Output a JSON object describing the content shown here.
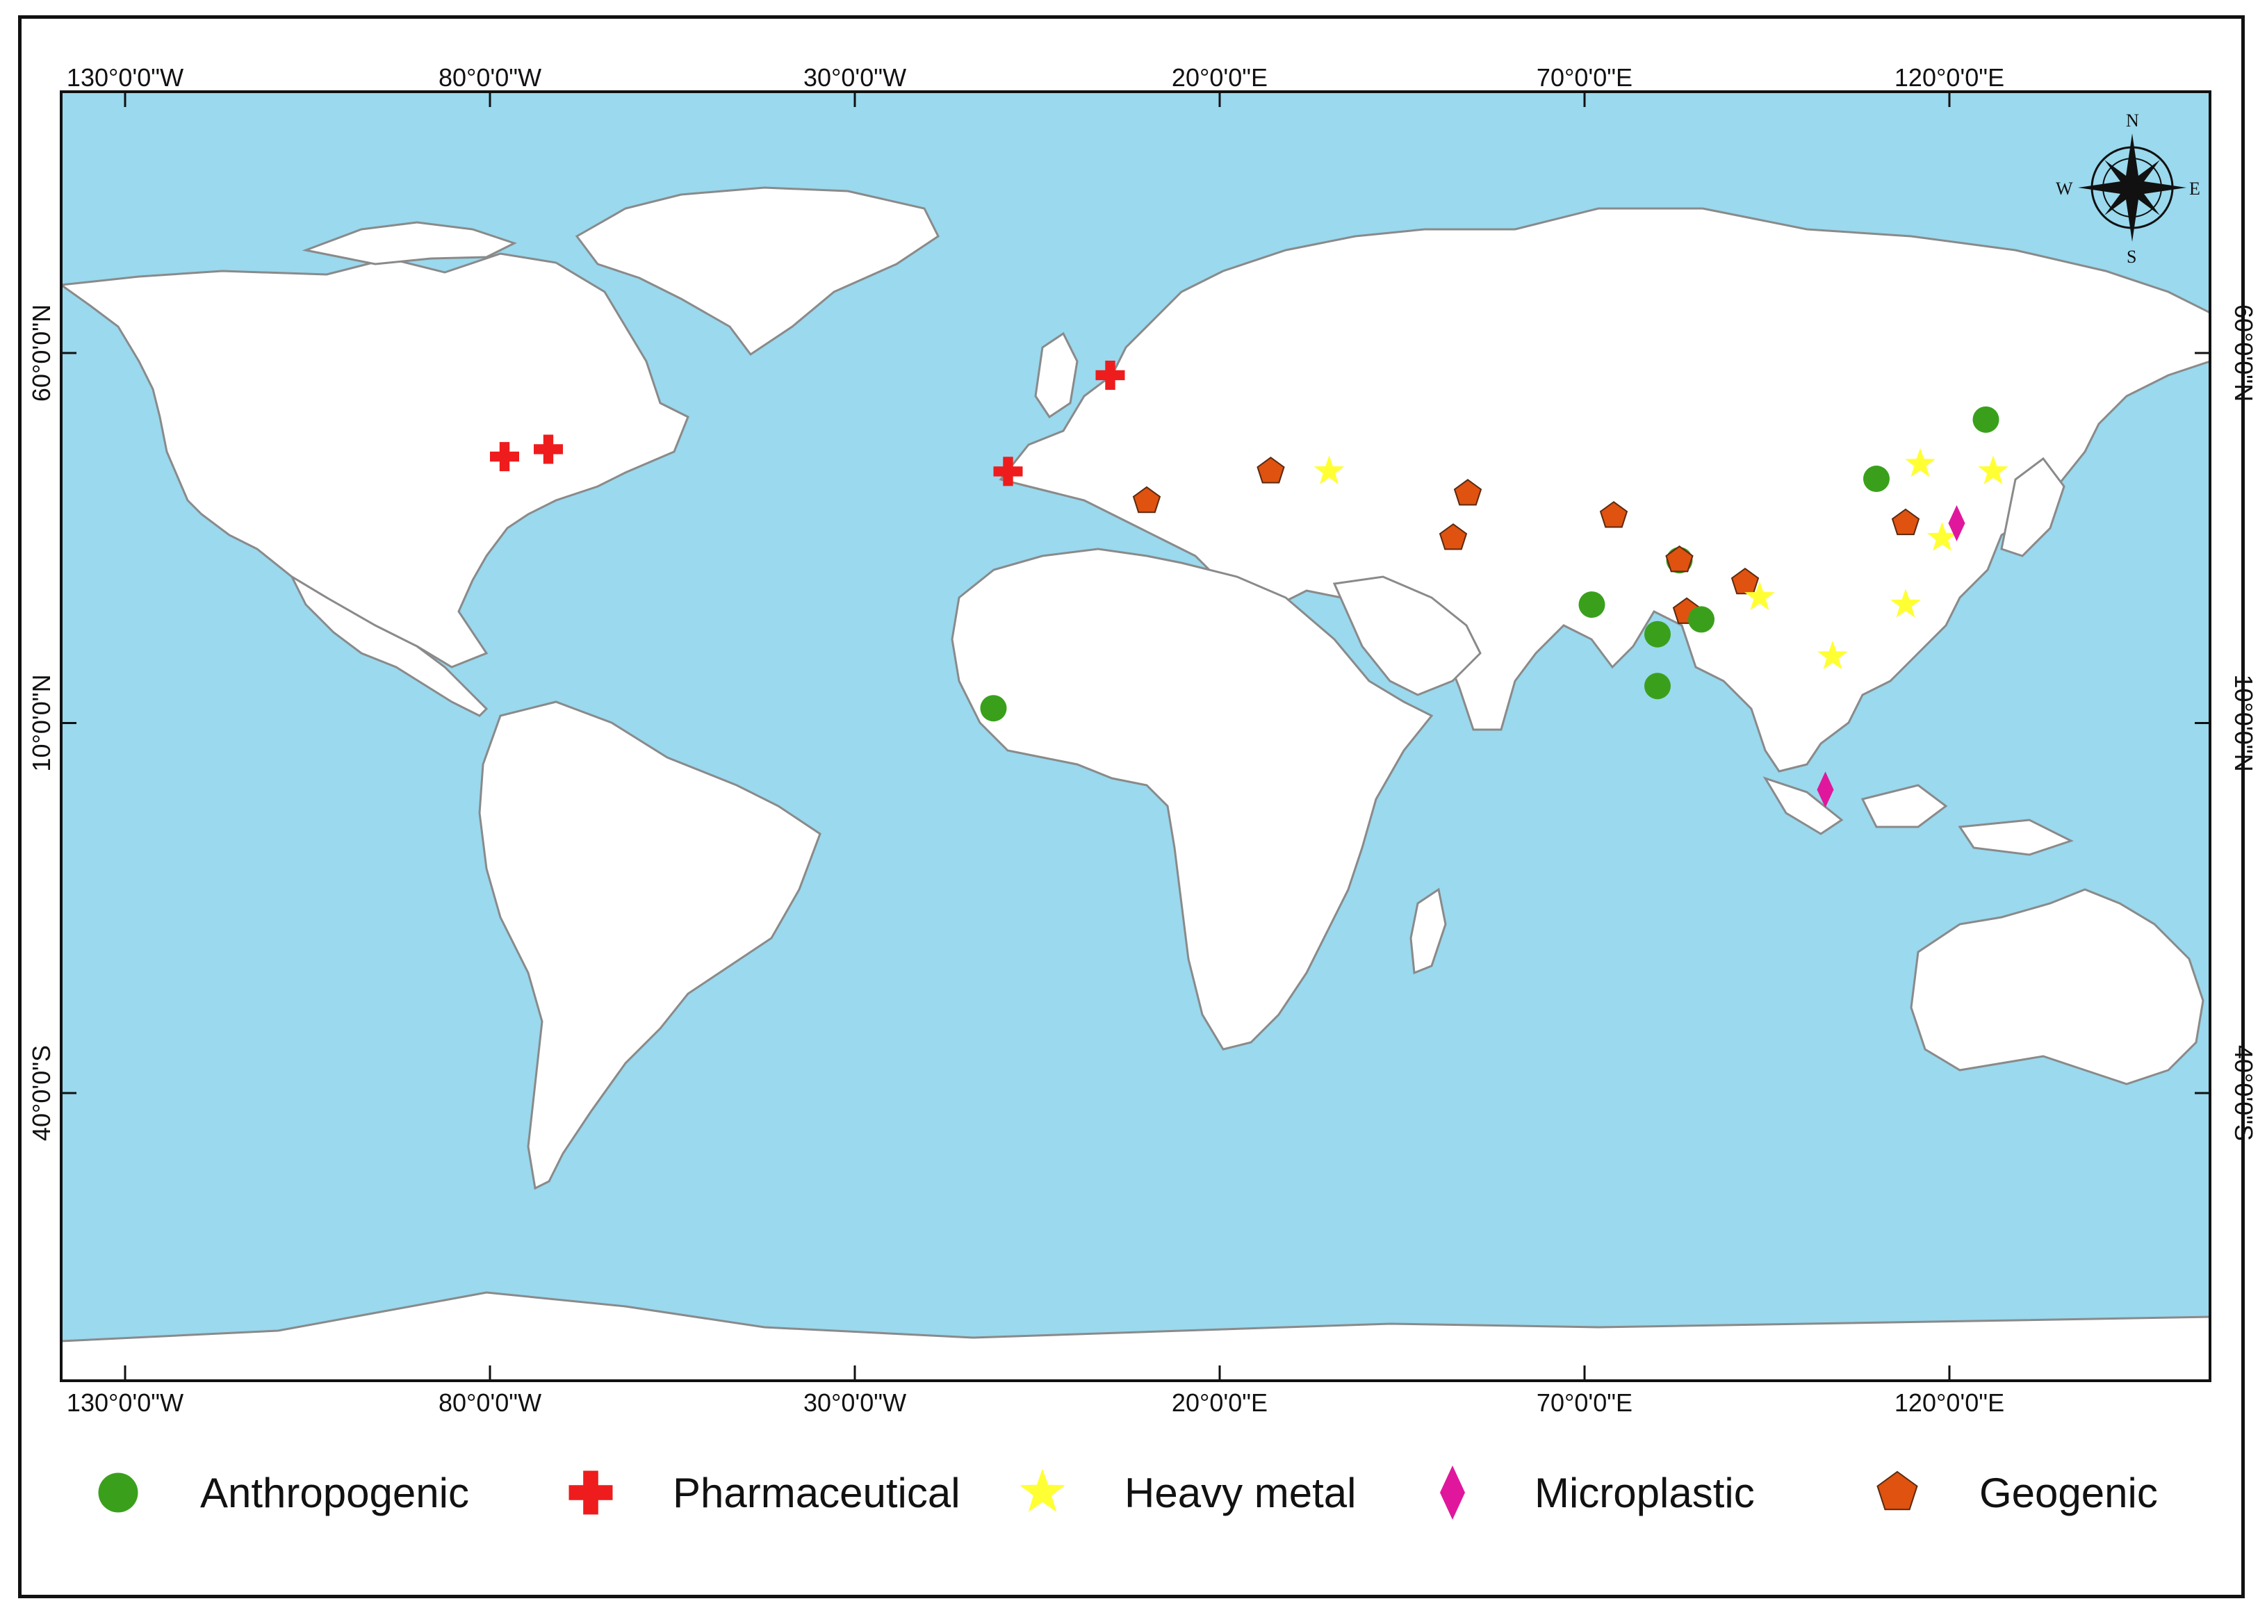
{
  "map": {
    "ocean_color": "#9ad9ee",
    "land_color": "#ffffff",
    "border_color": "#8a8a8a"
  },
  "axes": {
    "top_ticks": [
      "130°0'0\"W",
      "80°0'0\"W",
      "30°0'0\"W",
      "20°0'0\"E",
      "70°0'0\"E",
      "120°0'0\"E"
    ],
    "bottom_ticks": [
      "130°0'0\"W",
      "80°0'0\"W",
      "30°0'0\"W",
      "20°0'0\"E",
      "70°0'0\"E",
      "120°0'0\"E"
    ],
    "left_ticks": [
      "60°0'0\"N",
      "10°0'0\"N",
      "40°0'0\"S"
    ],
    "right_ticks": [
      "60°0'0\"N",
      "10°0'0\"N",
      "40°0'0\"S"
    ]
  },
  "compass": {
    "icon": "compass-rose-icon",
    "n": "N",
    "s": "S",
    "e": "E",
    "w": "W"
  },
  "legend": [
    {
      "key": "anthropogenic",
      "label": "Anthropogenic",
      "symbol": "circle",
      "color": "#3aa01c"
    },
    {
      "key": "pharmaceutical",
      "label": "Pharmaceutical",
      "symbol": "cross",
      "color": "#ee1c1c"
    },
    {
      "key": "heavy_metal",
      "label": "Heavy metal",
      "symbol": "star",
      "color": "#ffff33"
    },
    {
      "key": "microplastic",
      "label": "Microplastic",
      "symbol": "diamond",
      "color": "#e0179c"
    },
    {
      "key": "geogenic",
      "label": "Geogenic",
      "symbol": "pentagon",
      "color": "#e0520f"
    }
  ],
  "sites": [
    {
      "type": "pharmaceutical",
      "lon": -78,
      "lat": 46
    },
    {
      "type": "pharmaceutical",
      "lon": -72,
      "lat": 47
    },
    {
      "type": "pharmaceutical",
      "lon": -9,
      "lat": 44
    },
    {
      "type": "pharmaceutical",
      "lon": 5,
      "lat": 57
    },
    {
      "type": "geogenic",
      "lon": 10,
      "lat": 40
    },
    {
      "type": "geogenic",
      "lon": 27,
      "lat": 44
    },
    {
      "type": "heavy_metal",
      "lon": 35,
      "lat": 44
    },
    {
      "type": "geogenic",
      "lon": 54,
      "lat": 41
    },
    {
      "type": "geogenic",
      "lon": 52,
      "lat": 35
    },
    {
      "type": "geogenic",
      "lon": 74,
      "lat": 38
    },
    {
      "type": "anthropogenic",
      "lon": 83,
      "lat": 32
    },
    {
      "type": "geogenic",
      "lon": 83,
      "lat": 32
    },
    {
      "type": "geogenic",
      "lon": 92,
      "lat": 29
    },
    {
      "type": "heavy_metal",
      "lon": 94,
      "lat": 27
    },
    {
      "type": "anthropogenic",
      "lon": 71,
      "lat": 26
    },
    {
      "type": "geogenic",
      "lon": 84,
      "lat": 25
    },
    {
      "type": "anthropogenic",
      "lon": 86,
      "lat": 24
    },
    {
      "type": "anthropogenic",
      "lon": 80,
      "lat": 22
    },
    {
      "type": "anthropogenic",
      "lon": 80,
      "lat": 15
    },
    {
      "type": "anthropogenic",
      "lon": -11,
      "lat": 12
    },
    {
      "type": "anthropogenic",
      "lon": 110,
      "lat": 43
    },
    {
      "type": "anthropogenic",
      "lon": 125,
      "lat": 51
    },
    {
      "type": "heavy_metal",
      "lon": 116,
      "lat": 45
    },
    {
      "type": "heavy_metal",
      "lon": 126,
      "lat": 44
    },
    {
      "type": "geogenic",
      "lon": 114,
      "lat": 37
    },
    {
      "type": "heavy_metal",
      "lon": 119,
      "lat": 35
    },
    {
      "type": "microplastic",
      "lon": 121,
      "lat": 37
    },
    {
      "type": "heavy_metal",
      "lon": 114,
      "lat": 26
    },
    {
      "type": "heavy_metal",
      "lon": 104,
      "lat": 19
    },
    {
      "type": "microplastic",
      "lon": 103,
      "lat": 1
    }
  ]
}
